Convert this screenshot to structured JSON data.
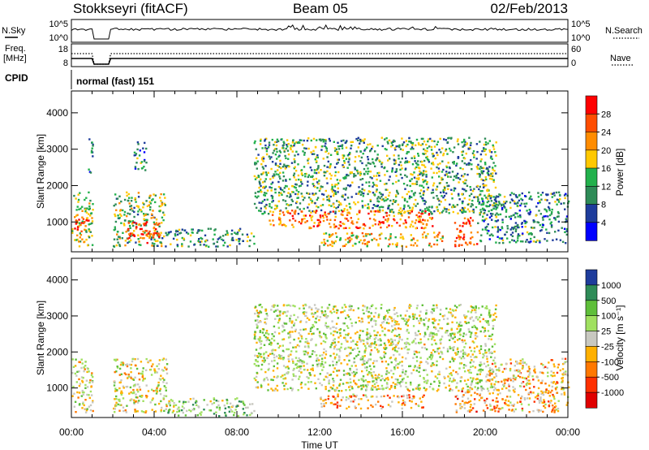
{
  "header": {
    "station": "Stokkseyri (fitACF)",
    "beam": "Beam 05",
    "date": "02/Feb/2013"
  },
  "summary_panel": {
    "nsky_label": "N.Sky",
    "nsky_ticks": [
      "10^5",
      "10^0"
    ],
    "nsearch_label": "N.Search",
    "nsearch_ticks": [
      "10^5",
      "10^0"
    ],
    "freq_label_line1": "Freq.",
    "freq_label_line2": "[MHz]",
    "freq_ticks": [
      "18",
      "8"
    ],
    "nave_label": "Nave",
    "nave_ticks": [
      "60",
      "0"
    ],
    "cpid_label": "CPID",
    "cpid_value": "normal (fast) 151"
  },
  "chart_data": [
    {
      "type": "heatmap",
      "name": "power",
      "ylabel": "Slant Range [km]",
      "xlabel": "",
      "x_ticks": [
        "00:00",
        "04:00",
        "08:00",
        "12:00",
        "16:00",
        "20:00",
        "00:00"
      ],
      "y_ticks": [
        "1000",
        "2000",
        "3000",
        "4000"
      ],
      "xlim_hours": [
        0,
        24
      ],
      "ylim_km": [
        180,
        4600
      ],
      "colorbar": {
        "label": "Power [dB]",
        "tick_labels": [
          "28",
          "24",
          "20",
          "16",
          "12",
          "8",
          "4"
        ],
        "colors": [
          "#ff0000",
          "#ff4d00",
          "#ff8c00",
          "#ffc800",
          "#22b14c",
          "#2e8b57",
          "#1e3c9c",
          "#0000ff"
        ]
      },
      "regions": [
        {
          "t0": 0.0,
          "t1": 1.0,
          "r0": 300,
          "r1": 1800,
          "level": 0.5
        },
        {
          "t0": 0.1,
          "t1": 0.8,
          "r0": 700,
          "r1": 1100,
          "level": 0.9
        },
        {
          "t0": 0.8,
          "t1": 1.0,
          "r0": 2300,
          "r1": 3500,
          "level": 0.25
        },
        {
          "t0": 2.0,
          "t1": 4.5,
          "r0": 300,
          "r1": 1800,
          "level": 0.45
        },
        {
          "t0": 2.6,
          "t1": 4.3,
          "r0": 400,
          "r1": 1000,
          "level": 0.85
        },
        {
          "t0": 3.0,
          "t1": 3.6,
          "r0": 2400,
          "r1": 3200,
          "level": 0.3
        },
        {
          "t0": 4.5,
          "t1": 8.8,
          "r0": 300,
          "r1": 800,
          "level": 0.35
        },
        {
          "t0": 8.8,
          "t1": 20.5,
          "r0": 1200,
          "r1": 3300,
          "level": 0.4
        },
        {
          "t0": 9.5,
          "t1": 17.5,
          "r0": 800,
          "r1": 1300,
          "level": 0.75
        },
        {
          "t0": 12.0,
          "t1": 18.0,
          "r0": 300,
          "r1": 700,
          "level": 0.6
        },
        {
          "t0": 18.5,
          "t1": 19.6,
          "r0": 300,
          "r1": 1100,
          "level": 0.85
        },
        {
          "t0": 19.6,
          "t1": 24.0,
          "r0": 400,
          "r1": 1800,
          "level": 0.3
        }
      ]
    },
    {
      "type": "heatmap",
      "name": "velocity",
      "ylabel": "Slant Range [km]",
      "xlabel": "Time UT",
      "x_ticks": [
        "00:00",
        "04:00",
        "08:00",
        "12:00",
        "16:00",
        "20:00",
        "00:00"
      ],
      "y_ticks": [
        "1000",
        "2000",
        "3000",
        "4000"
      ],
      "xlim_hours": [
        0,
        24
      ],
      "ylim_km": [
        180,
        4600
      ],
      "colorbar": {
        "label": "Velocity [m s⁻¹]",
        "tick_labels": [
          "1000",
          "500",
          "100",
          "25",
          "-25",
          "-100",
          "-500",
          "-1000"
        ],
        "colors": [
          "#1e3c9c",
          "#2e8b57",
          "#5fbf3a",
          "#a0e060",
          "#c8c8c0",
          "#ffb000",
          "#ff7800",
          "#ff3000",
          "#e00000"
        ]
      },
      "regions": [
        {
          "t0": 0.0,
          "t1": 1.0,
          "r0": 300,
          "r1": 1800,
          "level": 0.5
        },
        {
          "t0": 2.0,
          "t1": 4.6,
          "r0": 300,
          "r1": 1800,
          "level": 0.5
        },
        {
          "t0": 4.6,
          "t1": 8.8,
          "r0": 200,
          "r1": 700,
          "level": 0.35
        },
        {
          "t0": 8.8,
          "t1": 20.5,
          "r0": 900,
          "r1": 3300,
          "level": 0.45
        },
        {
          "t0": 12.0,
          "t1": 17.0,
          "r0": 400,
          "r1": 800,
          "level": 0.65
        },
        {
          "t0": 18.5,
          "t1": 20.0,
          "r0": 300,
          "r1": 900,
          "level": 0.7
        },
        {
          "t0": 20.0,
          "t1": 24.0,
          "r0": 300,
          "r1": 1800,
          "level": 0.6
        }
      ]
    }
  ]
}
